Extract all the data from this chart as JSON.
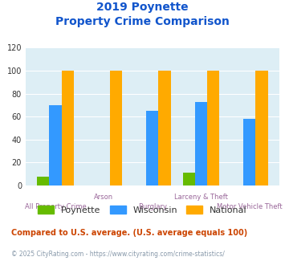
{
  "title_line1": "2019 Poynette",
  "title_line2": "Property Crime Comparison",
  "categories": [
    "All Property Crime",
    "Arson",
    "Burglary",
    "Larceny & Theft",
    "Motor Vehicle Theft"
  ],
  "poynette": [
    8,
    0,
    0,
    11,
    0
  ],
  "wisconsin": [
    70,
    0,
    65,
    73,
    58
  ],
  "national": [
    100,
    100,
    100,
    100,
    100
  ],
  "color_poynette": "#66bb00",
  "color_wisconsin": "#3399ff",
  "color_national": "#ffaa00",
  "ylim": [
    0,
    120
  ],
  "yticks": [
    0,
    20,
    40,
    60,
    80,
    100,
    120
  ],
  "bar_width": 0.25,
  "bg_color": "#ddeef5",
  "footnote": "Compared to U.S. average. (U.S. average equals 100)",
  "credit": "© 2025 CityRating.com - https://www.cityrating.com/crime-statistics/",
  "title_color": "#1155cc",
  "xlabel_color": "#996699",
  "footnote_color": "#cc4400",
  "credit_color": "#8899aa",
  "legend_text_color": "#333333"
}
